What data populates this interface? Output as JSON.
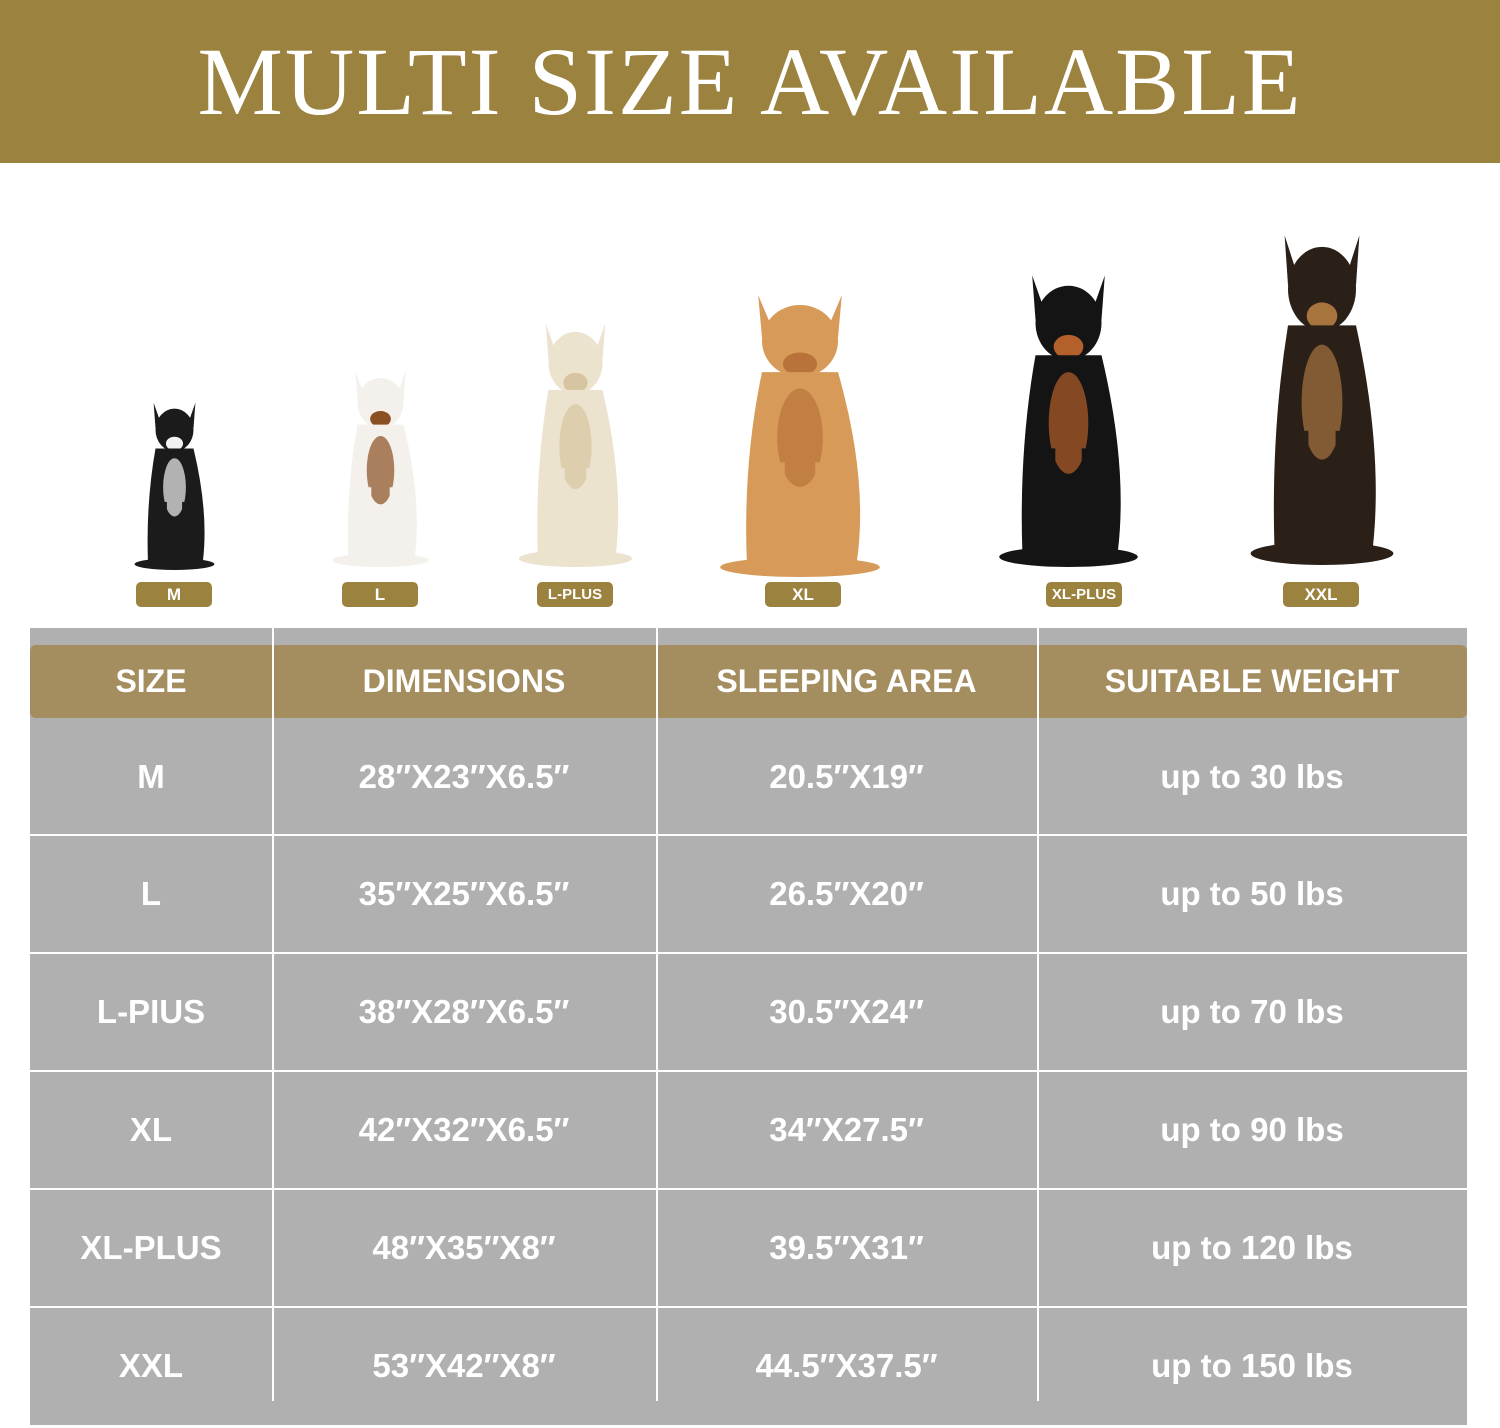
{
  "banner": {
    "title": "MULTI SIZE AVAILABLE"
  },
  "colors": {
    "brand": "#9c823f",
    "header": "#a48e60",
    "table_bg": "#b0b0b0"
  },
  "dogs": [
    {
      "badge": "M",
      "breed_icon": "french-bulldog-icon"
    },
    {
      "badge": "L",
      "breed_icon": "beagle-icon"
    },
    {
      "badge": "L-PLUS",
      "breed_icon": "golden-retriever-cream-icon"
    },
    {
      "badge": "XL",
      "breed_icon": "golden-retriever-icon"
    },
    {
      "badge": "XL-PLUS",
      "breed_icon": "doberman-icon"
    },
    {
      "badge": "XXL",
      "breed_icon": "german-shepherd-icon"
    }
  ],
  "table": {
    "headers": [
      "SIZE",
      "DIMENSIONS",
      "SLEEPING AREA",
      "SUITABLE WEIGHT"
    ],
    "rows": [
      [
        "M",
        "28″X23″X6.5″",
        "20.5″X19″",
        "up to 30 lbs"
      ],
      [
        "L",
        "35″X25″X6.5″",
        "26.5″X20″",
        "up to 50 lbs"
      ],
      [
        "L-PIUS",
        "38″X28″X6.5″",
        "30.5″X24″",
        "up to 70 lbs"
      ],
      [
        "XL",
        "42″X32″X6.5″",
        "34″X27.5″",
        "up to 90 lbs"
      ],
      [
        "XL-PLUS",
        "48″X35″X8″",
        "39.5″X31″",
        "up to 120 lbs"
      ],
      [
        "XXL",
        "53″X42″X8″",
        "44.5″X37.5″",
        "up to 150 lbs"
      ]
    ]
  }
}
